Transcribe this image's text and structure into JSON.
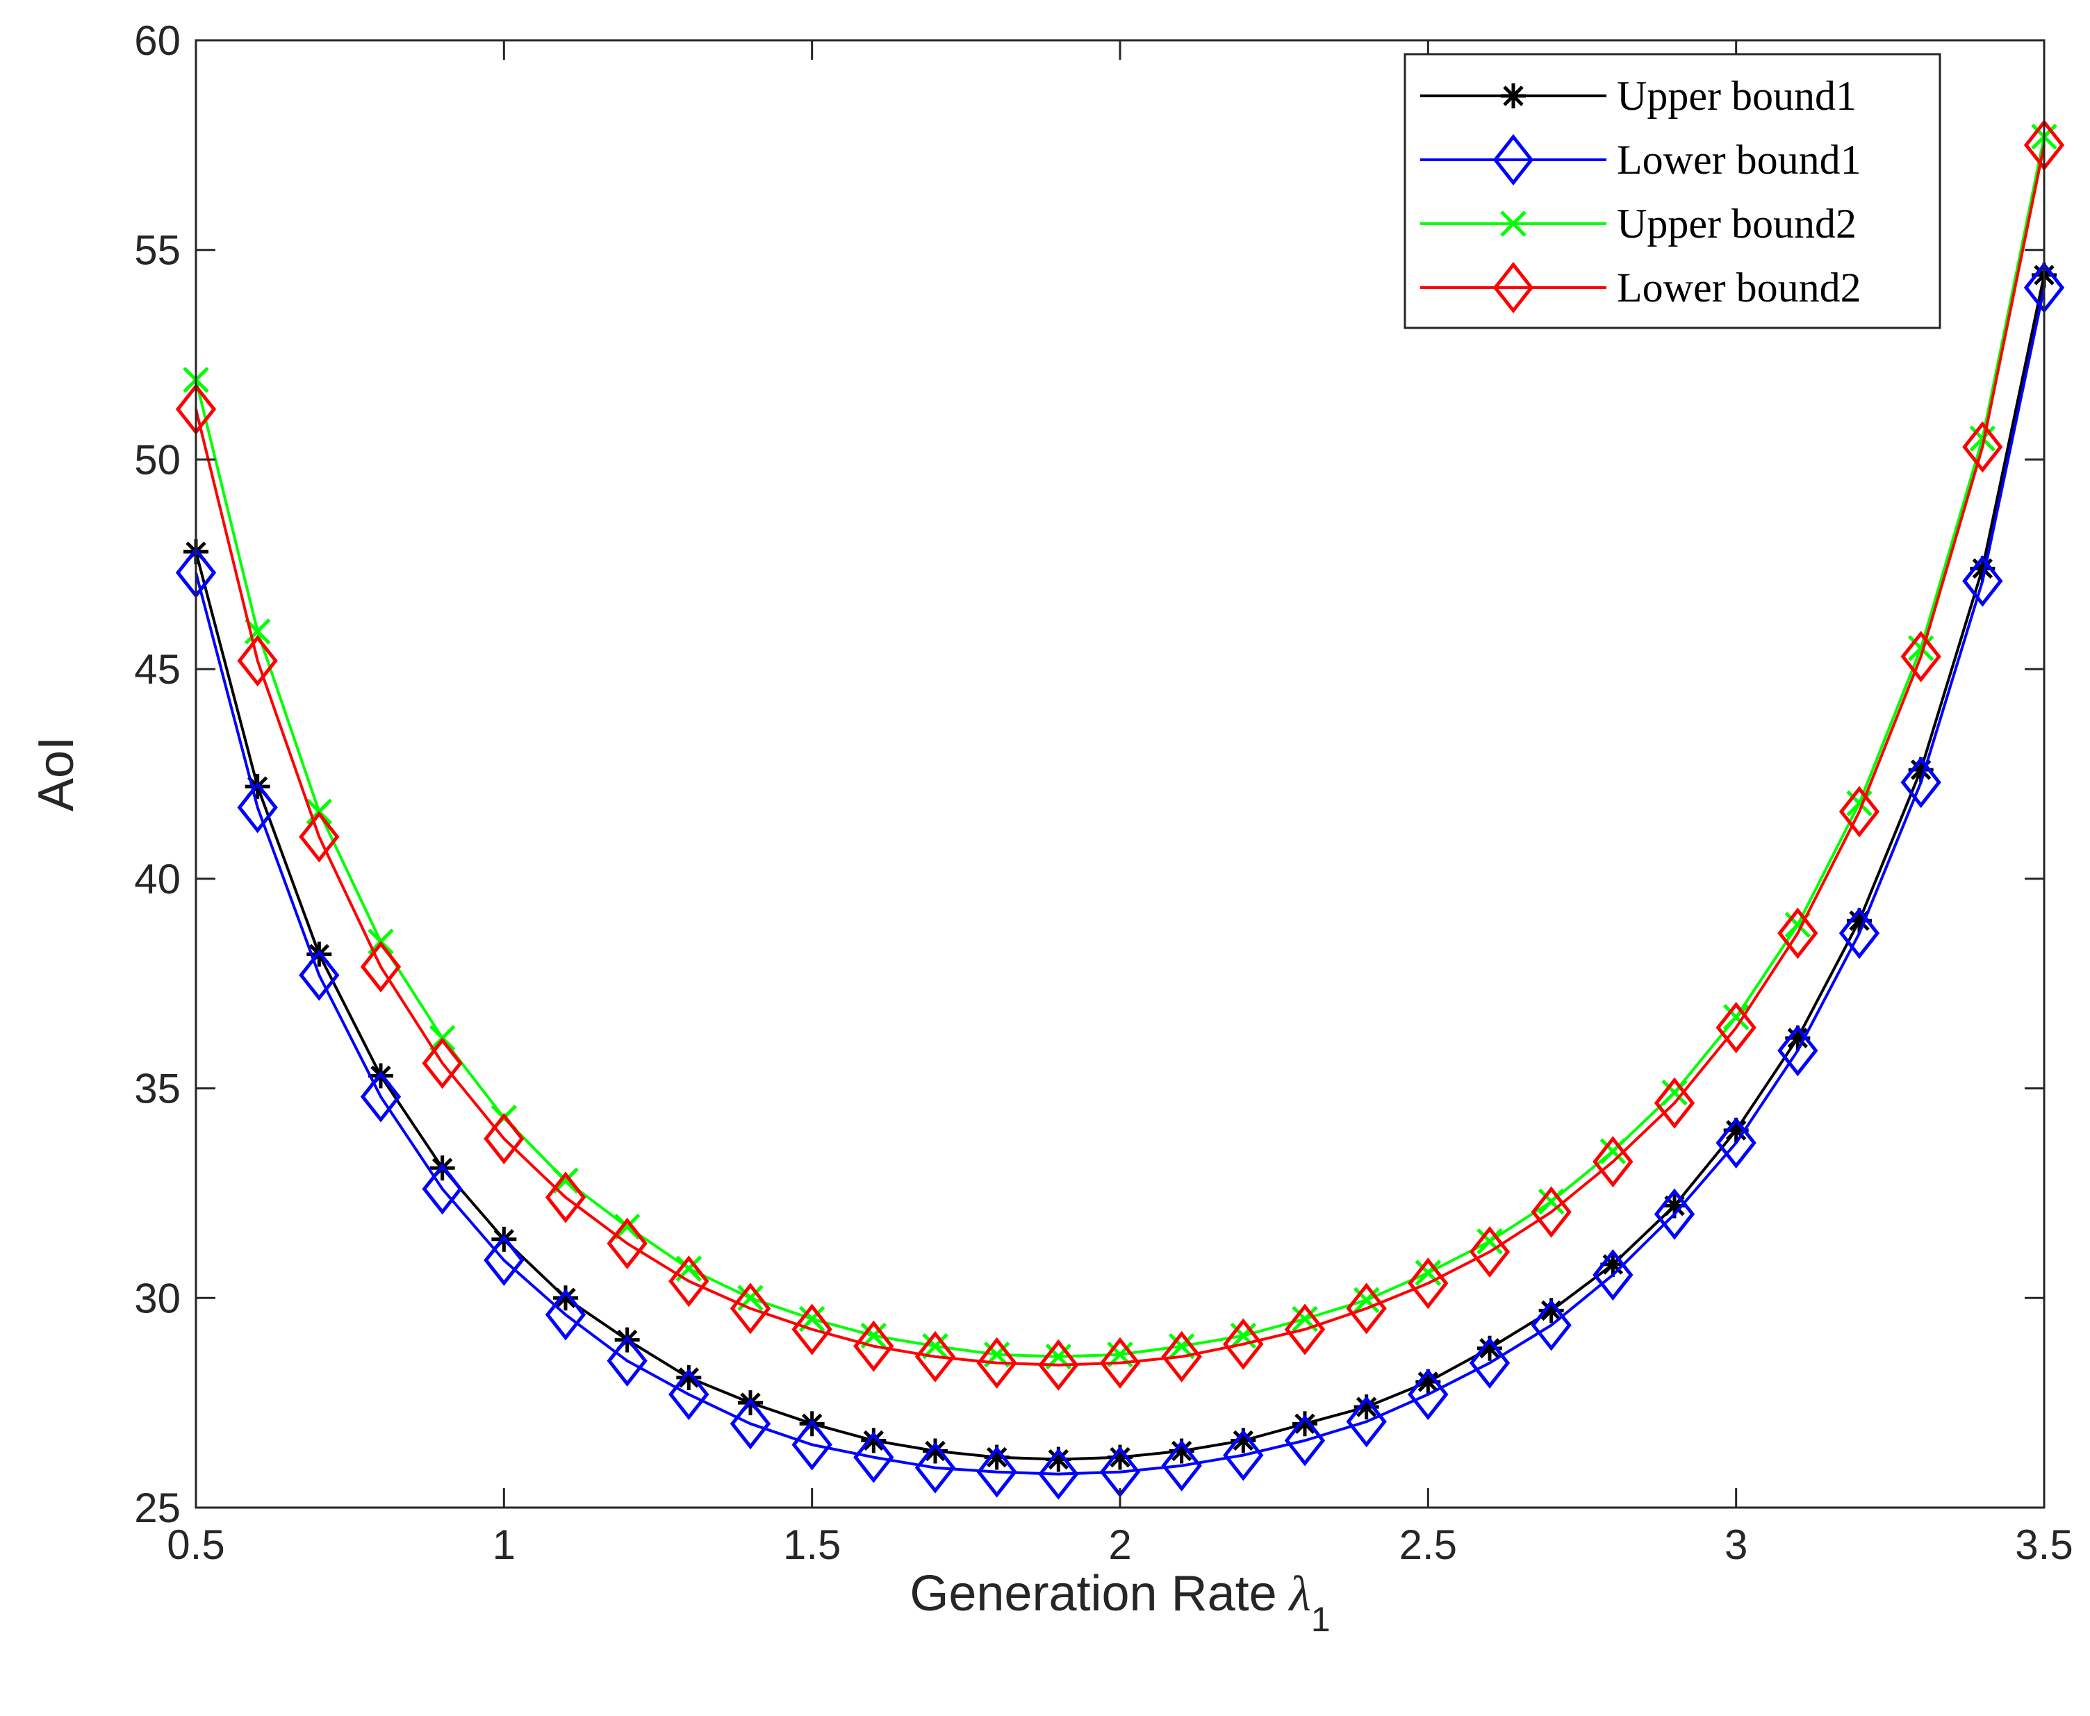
{
  "chart_data": {
    "type": "line",
    "title": "",
    "xlabel": "Generation Rate",
    "xlabel_symbol": "λ",
    "xlabel_subscript": "1",
    "ylabel": "AoI",
    "xlim": [
      0.5,
      3.5
    ],
    "ylim": [
      25,
      60
    ],
    "xticks": [
      0.5,
      1,
      1.5,
      2,
      2.5,
      3,
      3.5
    ],
    "xtick_labels": [
      "0.5",
      "1",
      "1.5",
      "2",
      "2.5",
      "3",
      "3.5"
    ],
    "yticks": [
      25,
      30,
      35,
      40,
      45,
      50,
      55,
      60
    ],
    "ytick_labels": [
      "25",
      "30",
      "35",
      "40",
      "45",
      "50",
      "55",
      "60"
    ],
    "grid": false,
    "legend_position": "top-right",
    "x": [
      0.5,
      0.6,
      0.7,
      0.8,
      0.9,
      1.0,
      1.1,
      1.2,
      1.3,
      1.4,
      1.5,
      1.6,
      1.7,
      1.8,
      1.9,
      2.0,
      2.1,
      2.2,
      2.3,
      2.4,
      2.5,
      2.6,
      2.7,
      2.8,
      2.9,
      3.0,
      3.1,
      3.2,
      3.3,
      3.4,
      3.5
    ],
    "series": [
      {
        "name": "Upper bound1",
        "color": "#000000",
        "marker": "asterisk",
        "values": [
          47.8,
          42.2,
          38.2,
          35.3,
          33.1,
          31.4,
          30.0,
          29.0,
          28.1,
          27.5,
          27.0,
          26.6,
          26.35,
          26.2,
          26.15,
          26.2,
          26.35,
          26.6,
          27.0,
          27.4,
          28.0,
          28.8,
          29.7,
          30.8,
          32.2,
          34.0,
          36.2,
          39.0,
          42.6,
          47.4,
          54.4
        ]
      },
      {
        "name": "Lower bound1",
        "color": "#0000ff",
        "marker": "diamond",
        "values": [
          47.3,
          41.7,
          37.7,
          34.8,
          32.6,
          30.9,
          29.6,
          28.5,
          27.7,
          27.0,
          26.5,
          26.2,
          25.95,
          25.85,
          25.8,
          25.85,
          26.0,
          26.25,
          26.6,
          27.05,
          27.7,
          28.45,
          29.35,
          30.55,
          32.0,
          33.7,
          35.9,
          38.7,
          42.3,
          47.1,
          54.1
        ]
      },
      {
        "name": "Upper bound2",
        "color": "#00ff00",
        "marker": "x",
        "values": [
          51.9,
          45.9,
          41.6,
          38.5,
          36.2,
          34.3,
          32.8,
          31.7,
          30.7,
          30.0,
          29.5,
          29.1,
          28.85,
          28.65,
          28.6,
          28.65,
          28.85,
          29.1,
          29.5,
          29.95,
          30.6,
          31.35,
          32.3,
          33.5,
          34.9,
          36.7,
          38.9,
          41.8,
          45.5,
          50.5,
          57.7
        ]
      },
      {
        "name": "Lower bound2",
        "color": "#ff0000",
        "marker": "diamond",
        "values": [
          51.2,
          45.2,
          41.0,
          37.9,
          35.6,
          33.8,
          32.4,
          31.3,
          30.4,
          29.75,
          29.25,
          28.85,
          28.6,
          28.45,
          28.4,
          28.45,
          28.6,
          28.9,
          29.25,
          29.75,
          30.35,
          31.1,
          32.05,
          33.25,
          34.65,
          36.45,
          38.7,
          41.6,
          45.3,
          50.3,
          57.5
        ]
      }
    ]
  }
}
